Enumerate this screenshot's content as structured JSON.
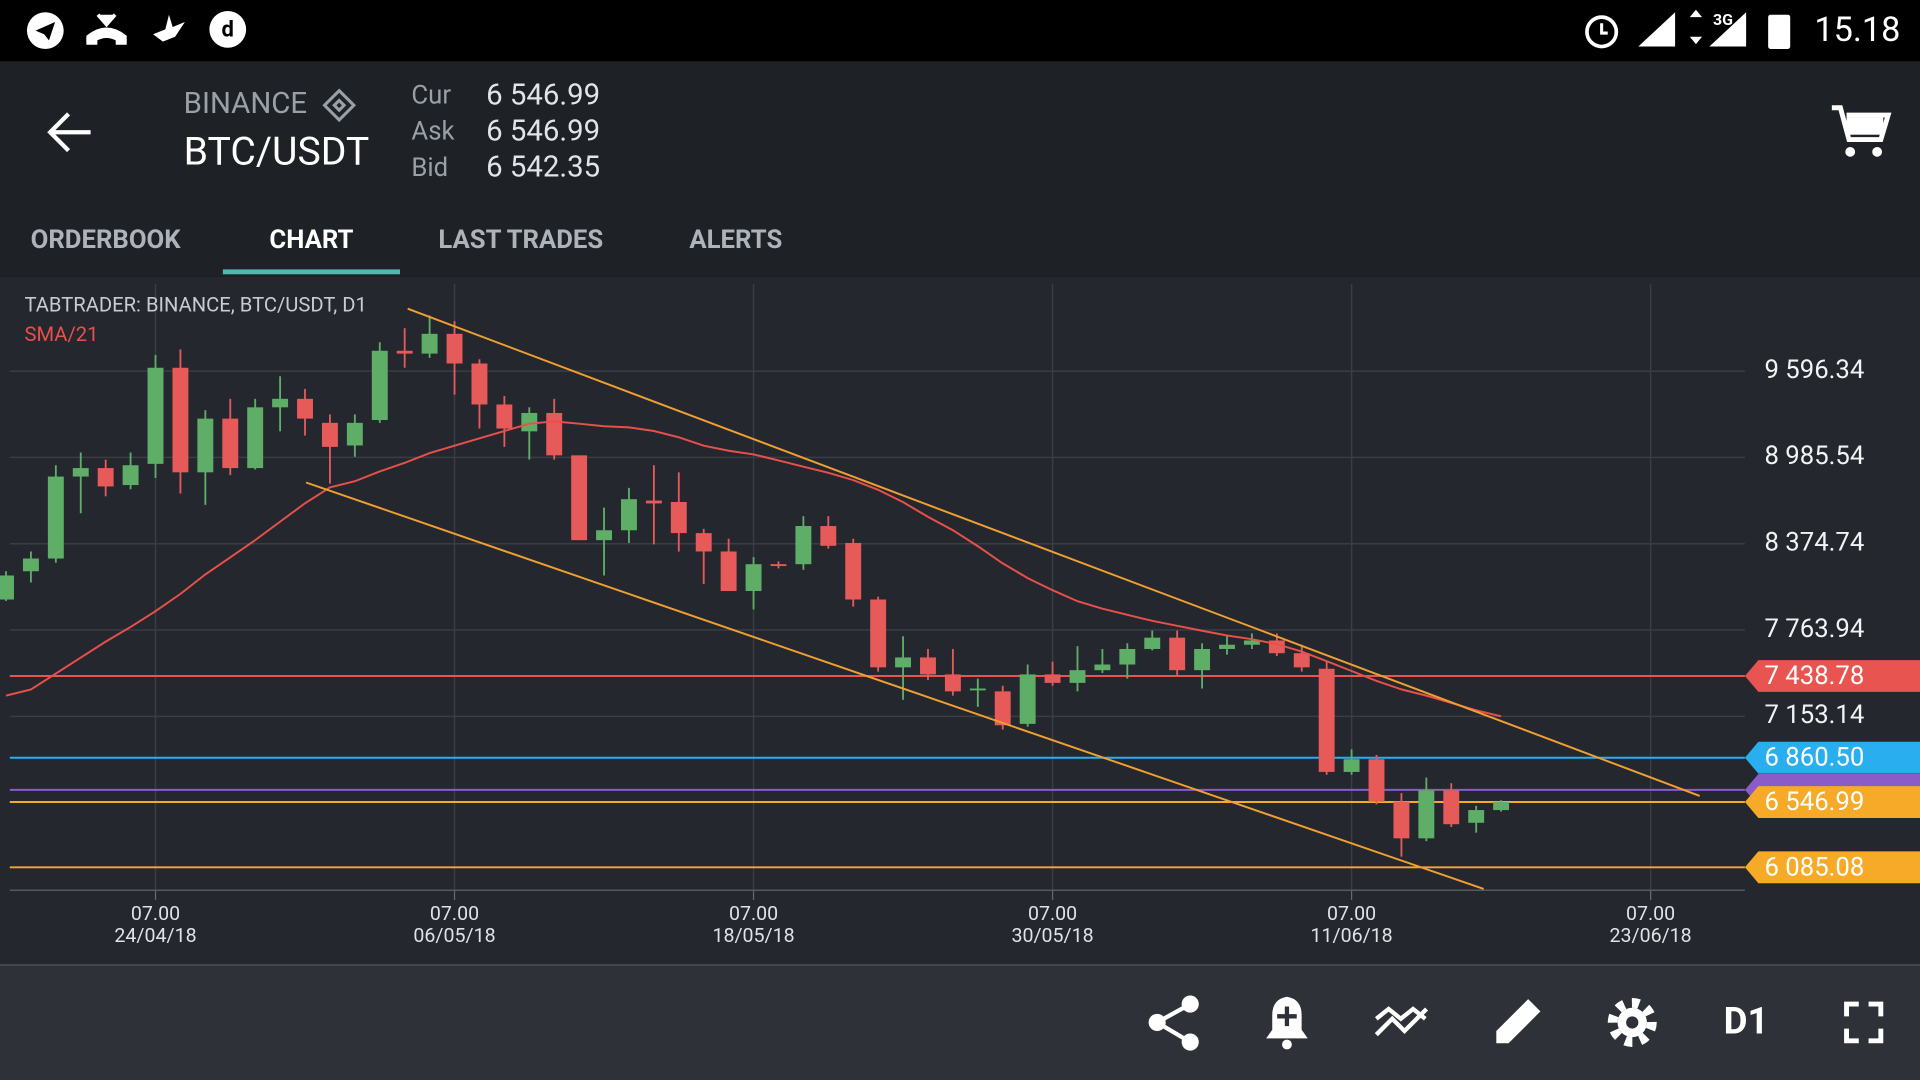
{
  "status_bar": {
    "network": "3G",
    "time": "15.18"
  },
  "header": {
    "exchange": "BINANCE",
    "pair": "BTC/USDT",
    "quotes": [
      {
        "label": "Cur",
        "value": "6 546.99"
      },
      {
        "label": "Ask",
        "value": "6 546.99"
      },
      {
        "label": "Bid",
        "value": "6 542.35"
      }
    ]
  },
  "tabs": [
    "ORDERBOOK",
    "CHART",
    "LAST TRADES",
    "ALERTS"
  ],
  "active_tab": 1,
  "chart_data": {
    "type": "candlestick",
    "title": "TABTRADER: BINANCE, BTC/USDT, D1",
    "categories": [
      null,
      null,
      null,
      null,
      null,
      null,
      {
        "time": "07.00",
        "date": "24/04/18"
      },
      null,
      null,
      null,
      null,
      null,
      null,
      null,
      null,
      null,
      null,
      null,
      {
        "time": "07.00",
        "date": "06/05/18"
      },
      null,
      null,
      null,
      null,
      null,
      null,
      null,
      null,
      null,
      null,
      null,
      {
        "time": "07.00",
        "date": "18/05/18"
      },
      null,
      null,
      null,
      null,
      null,
      null,
      null,
      null,
      null,
      null,
      null,
      {
        "time": "07.00",
        "date": "30/05/18"
      },
      null,
      null,
      null,
      null,
      null,
      null,
      null,
      null,
      null,
      null,
      null,
      {
        "time": "07.00",
        "date": "11/06/18"
      },
      null,
      null,
      null,
      null,
      null,
      null,
      null,
      null,
      null,
      null,
      null,
      {
        "time": "07.00",
        "date": "23/06/18"
      },
      null,
      null,
      null
    ],
    "open": [
      7980,
      8180,
      8270,
      8850,
      8910,
      8790,
      8940,
      9620,
      8880,
      9260,
      8910,
      9340,
      9400,
      9230,
      9070,
      9250,
      9740,
      9720,
      9860,
      9650,
      9360,
      9170,
      9300,
      9000,
      8400,
      8470,
      8680,
      8670,
      8450,
      8320,
      8040,
      8230,
      8230,
      8500,
      8380,
      7980,
      7500,
      7570,
      7450,
      7340,
      7330,
      7100,
      7450,
      7390,
      7480,
      7520,
      7630,
      7710,
      7480,
      7630,
      7660,
      7690,
      7600,
      7490,
      6760,
      6850,
      6550,
      6290,
      6630,
      6400,
      6490,
      null,
      null,
      null,
      null,
      null,
      null,
      null,
      null,
      null
    ],
    "high": [
      8180,
      8320,
      8930,
      9020,
      8970,
      9020,
      9710,
      9750,
      9320,
      9400,
      9400,
      9560,
      9470,
      9290,
      9290,
      9800,
      9900,
      9990,
      9950,
      9680,
      9420,
      9340,
      9400,
      9000,
      8630,
      8770,
      8930,
      8880,
      8480,
      8410,
      8280,
      8250,
      8570,
      8570,
      8410,
      8000,
      7720,
      7630,
      7630,
      7420,
      7370,
      7520,
      7540,
      7650,
      7630,
      7670,
      7760,
      7760,
      7670,
      7720,
      7740,
      7740,
      7660,
      7540,
      6920,
      6880,
      6610,
      6720,
      6680,
      6520,
      6560,
      null,
      null,
      null,
      null,
      null,
      null,
      null,
      null,
      null
    ],
    "low": [
      7970,
      8100,
      8240,
      8590,
      8710,
      8760,
      8840,
      8730,
      8650,
      8860,
      8900,
      9170,
      9140,
      8800,
      8990,
      9230,
      9620,
      9690,
      9430,
      9190,
      9060,
      8970,
      8970,
      8400,
      8150,
      8380,
      8370,
      8320,
      8090,
      8040,
      7910,
      8200,
      8190,
      8340,
      7930,
      7470,
      7270,
      7410,
      7300,
      7220,
      7060,
      7080,
      7370,
      7330,
      7460,
      7420,
      7620,
      7440,
      7350,
      7590,
      7630,
      7580,
      7470,
      6740,
      6740,
      6530,
      6160,
      6270,
      6370,
      6330,
      6480,
      null,
      null,
      null,
      null,
      null,
      null,
      null,
      null,
      null
    ],
    "close": [
      8150,
      8270,
      8850,
      8910,
      8780,
      8930,
      9620,
      8880,
      9260,
      8910,
      9340,
      9400,
      9260,
      9060,
      9230,
      9740,
      9720,
      9860,
      9650,
      9360,
      9190,
      9300,
      9000,
      8400,
      8470,
      8690,
      8660,
      8450,
      8320,
      8040,
      8230,
      8220,
      8500,
      8360,
      7980,
      7500,
      7570,
      7450,
      7330,
      7350,
      7090,
      7450,
      7390,
      7480,
      7520,
      7630,
      7710,
      7480,
      7630,
      7660,
      7690,
      7600,
      7500,
      6760,
      6850,
      6550,
      6290,
      6630,
      6390,
      6490,
      6547,
      null,
      null,
      null,
      null,
      null,
      null,
      null,
      null,
      null
    ],
    "up_color": "#5fae68",
    "down_color": "#e65a5a",
    "indicator": {
      "name": "SMA/21",
      "color": "#e8504a",
      "values": [
        7300,
        7343,
        7456,
        7569,
        7682,
        7786,
        7898,
        8020,
        8158,
        8279,
        8400,
        8531,
        8661,
        8773,
        8817,
        8886,
        8947,
        9016,
        9068,
        9120,
        9172,
        9224,
        9241,
        9224,
        9206,
        9198,
        9172,
        9128,
        9068,
        9033,
        9007,
        8964,
        8920,
        8877,
        8825,
        8756,
        8669,
        8565,
        8470,
        8357,
        8236,
        8132,
        8046,
        7968,
        7915,
        7872,
        7829,
        7794,
        7759,
        7725,
        7699,
        7664,
        7612,
        7543,
        7474,
        7404,
        7344,
        7300,
        7248,
        7196,
        7153,
        null,
        null,
        null,
        null,
        null,
        null,
        null,
        null,
        null
      ]
    },
    "ylim": [
      5923,
      10212
    ],
    "yticks": [
      {
        "value": 9596.34,
        "label": "9 596.34"
      },
      {
        "value": 8985.54,
        "label": "8 985.54"
      },
      {
        "value": 8374.74,
        "label": "8 374.74"
      },
      {
        "value": 7763.94,
        "label": "7 763.94"
      },
      {
        "value": 7153.14,
        "label": "7 153.14"
      }
    ],
    "grid": true,
    "levels": [
      {
        "value": 7438.78,
        "label": "7 438.78",
        "color": "#e85450"
      },
      {
        "value": 6860.5,
        "label": "6 860.50",
        "color": "#29aef0"
      },
      {
        "value": 6633,
        "color": "#8a5cc7"
      },
      {
        "value": 6546.99,
        "label": "6 546.99",
        "color": "#f7a928"
      },
      {
        "value": 6085.08,
        "label": "6 085.08",
        "color": "#f7a928"
      }
    ],
    "trendlines": [
      {
        "from": [
          16.12,
          10038
        ],
        "to": [
          67.97,
          6590
        ],
        "color": "#f0a030"
      },
      {
        "from": [
          12.04,
          8808
        ],
        "to": [
          59.3,
          5932
        ],
        "color": "#f0a030"
      }
    ]
  },
  "toolbar": {
    "timeframe": "D1"
  }
}
